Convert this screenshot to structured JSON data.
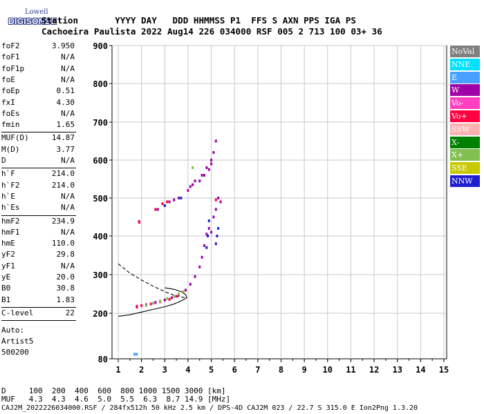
{
  "logo": {
    "top": "Lowell",
    "bottom": "DIGISONDE"
  },
  "header": {
    "line1": "Station       YYYY DAY   DDD HHMMSS P1  FFS S AXN PPS IGA PS",
    "line2": "Cachoeira Paulista 2022 Aug14 226 034000 RSF 005 2 713 100 03+ 36"
  },
  "params": {
    "group1": [
      {
        "k": "foF2",
        "v": "3.950"
      },
      {
        "k": "foF1",
        "v": "N/A"
      },
      {
        "k": "foF1p",
        "v": "N/A"
      },
      {
        "k": "foE",
        "v": "N/A"
      },
      {
        "k": "foEp",
        "v": "0.51"
      },
      {
        "k": "fxI",
        "v": "4.30"
      },
      {
        "k": "foEs",
        "v": "N/A"
      },
      {
        "k": "fmin",
        "v": "1.65"
      }
    ],
    "group2": [
      {
        "k": "MUF(D)",
        "v": "14.87"
      },
      {
        "k": "M(D)",
        "v": "3.77"
      },
      {
        "k": "D",
        "v": "N/A"
      }
    ],
    "group3": [
      {
        "k": "h`F",
        "v": "214.0"
      },
      {
        "k": "h`F2",
        "v": "214.0"
      },
      {
        "k": "h`E",
        "v": "N/A"
      },
      {
        "k": "h`Es",
        "v": "N/A"
      }
    ],
    "group4": [
      {
        "k": "hmF2",
        "v": "234.9"
      },
      {
        "k": "hmF1",
        "v": "N/A"
      },
      {
        "k": "hmE",
        "v": "110.0"
      },
      {
        "k": "yF2",
        "v": "29.8"
      },
      {
        "k": "yF1",
        "v": "N/A"
      },
      {
        "k": "yE",
        "v": "20.0"
      },
      {
        "k": "B0",
        "v": "30.8"
      },
      {
        "k": "B1",
        "v": "1.83"
      }
    ],
    "group5": [
      {
        "k": "C-level",
        "v": "22"
      }
    ],
    "auto": [
      "Auto:",
      "Artist5",
      "500200"
    ]
  },
  "legend": [
    {
      "label": "NoVal",
      "color": "#808080"
    },
    {
      "label": "NNE",
      "color": "#00e0ff"
    },
    {
      "label": "E",
      "color": "#4aa0ff"
    },
    {
      "label": "W",
      "color": "#a000a8"
    },
    {
      "label": "Vo-",
      "color": "#ff40c0"
    },
    {
      "label": "Vo+",
      "color": "#ff0040"
    },
    {
      "label": "SSW",
      "color": "#ffb0b0"
    },
    {
      "label": "X-",
      "color": "#008000"
    },
    {
      "label": "X+",
      "color": "#80c050"
    },
    {
      "label": "SSE",
      "color": "#c8c800"
    },
    {
      "label": "NNW",
      "color": "#2020d0"
    }
  ],
  "bottom": {
    "line1": "D     100  200  400  600  800 1000 1500 3000 [km]",
    "line2": "MUF   4.3  4.3  4.6  5.0  5.5  6.3  8.7 14.9 [MHz]"
  },
  "footer": "CAJ2M_2022226034000.RSF / 284fx512h 50 kHz 2.5 km / DPS-4D CAJ2M 023 / 22.7 S 315.0 E Ion2Png 1.3.20",
  "chart_data": {
    "type": "scatter",
    "xlim": [
      1,
      15
    ],
    "ylim": [
      80,
      900
    ],
    "x_ticks": [
      "1",
      "2",
      "3",
      "4",
      "5",
      "6",
      "7",
      "8",
      "9",
      "10",
      "11",
      "12",
      "13",
      "14",
      "15"
    ],
    "y_ticks": [
      "80",
      "200",
      "300",
      "400",
      "500",
      "600",
      "700",
      "800",
      "900"
    ],
    "grid": true,
    "series": [
      {
        "name": "W",
        "color": "#a000a8",
        "x": [
          1.8,
          2.2,
          2.6,
          3.0,
          3.3,
          3.6,
          3.9,
          4.1,
          4.3,
          4.5,
          4.6,
          4.7,
          4.8,
          4.9,
          5.0,
          5.1,
          5.2,
          4.1,
          4.3,
          4.6,
          4.8,
          5.0,
          5.1,
          5.2,
          4.0,
          4.2,
          4.5,
          4.7,
          4.9,
          5.0,
          5.3,
          5.4,
          2.7,
          3.0,
          3.2,
          3.4,
          3.6,
          1.9
        ],
        "y": [
          218,
          222,
          228,
          234,
          240,
          248,
          260,
          275,
          295,
          320,
          345,
          375,
          405,
          420,
          410,
          450,
          470,
          530,
          545,
          560,
          580,
          600,
          620,
          650,
          520,
          535,
          545,
          560,
          575,
          590,
          500,
          490,
          470,
          480,
          490,
          495,
          500,
          438
        ]
      },
      {
        "name": "NNW",
        "color": "#2020d0",
        "x": [
          4.8,
          4.85,
          4.9,
          5.2,
          5.25,
          5.3,
          3.7,
          3.0
        ],
        "y": [
          370,
          400,
          440,
          380,
          400,
          420,
          500,
          480
        ]
      },
      {
        "name": "Vo+",
        "color": "#ff0040",
        "x": [
          1.8,
          2.0,
          2.4,
          2.8,
          3.2,
          3.5,
          3.8,
          2.6,
          2.9,
          3.1,
          1.9,
          5.2
        ],
        "y": [
          216,
          220,
          224,
          230,
          236,
          244,
          255,
          470,
          485,
          490,
          436,
          495
        ]
      },
      {
        "name": "X+",
        "color": "#80c050",
        "x": [
          2.2,
          2.5,
          2.8,
          3.1,
          3.4,
          3.6,
          3.8,
          4.2
        ],
        "y": [
          220,
          226,
          232,
          238,
          243,
          250,
          256,
          580
        ]
      },
      {
        "name": "E",
        "color": "#4aa0ff",
        "x": [
          1.7,
          1.8
        ],
        "y": [
          92,
          92
        ]
      }
    ],
    "lines": [
      {
        "name": "profile",
        "style": "solid",
        "x": [
          1.0,
          1.5,
          2.0,
          2.5,
          3.0,
          3.4,
          3.7,
          3.95,
          3.9,
          3.7,
          3.4,
          3.0
        ],
        "y": [
          192,
          196,
          203,
          210,
          217,
          224,
          232,
          240,
          248,
          256,
          262,
          266
        ]
      },
      {
        "name": "topside",
        "style": "dashed",
        "x": [
          1.0,
          1.5,
          2.0,
          2.5,
          3.0,
          3.5,
          3.95
        ],
        "y": [
          328,
          304,
          286,
          270,
          256,
          244,
          240
        ]
      }
    ]
  }
}
